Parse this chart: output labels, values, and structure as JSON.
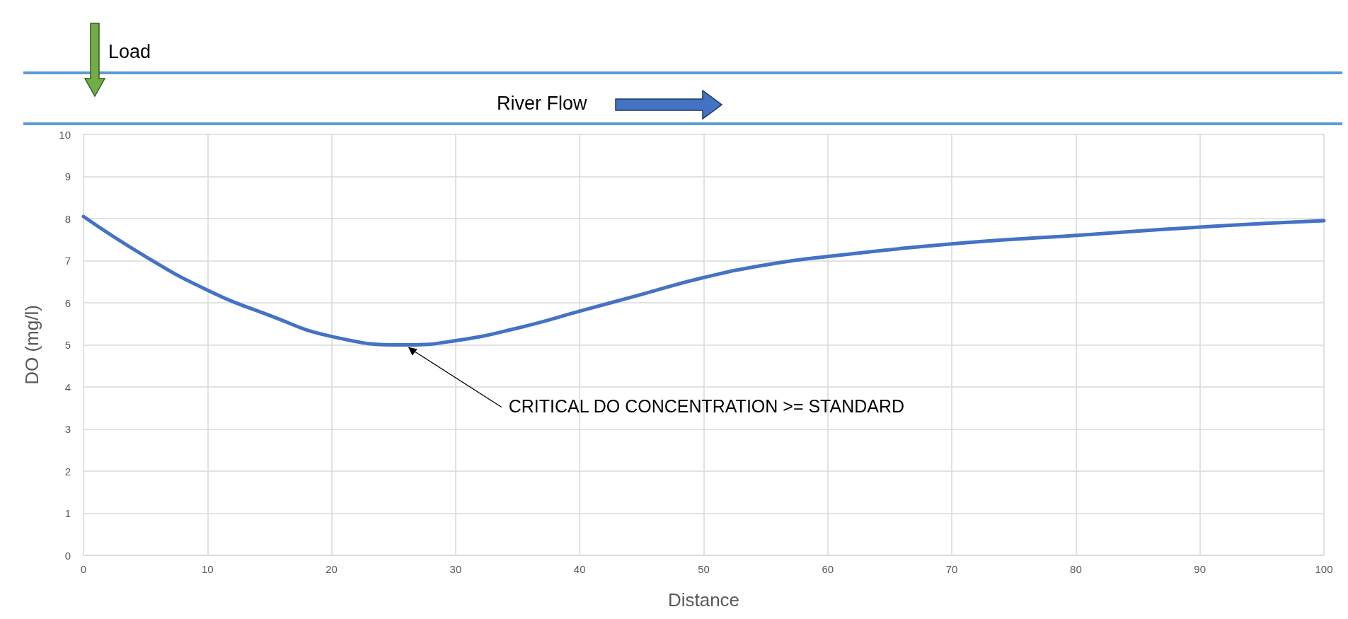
{
  "chart_data": {
    "type": "line",
    "xlabel": "Distance",
    "ylabel": "DO (mg/l)",
    "x": [
      0,
      5,
      10,
      15,
      20,
      26,
      30,
      35,
      40,
      45,
      50,
      55,
      60,
      70,
      80,
      90,
      100
    ],
    "series": [
      {
        "color": "#4472c4",
        "values": [
          8.05,
          7.1,
          6.3,
          5.7,
          5.2,
          5.0,
          5.1,
          5.4,
          5.8,
          6.2,
          6.6,
          6.9,
          7.1,
          7.4,
          7.6,
          7.8,
          7.95
        ]
      }
    ],
    "xlim": [
      0,
      100
    ],
    "xticks": [
      0,
      10,
      20,
      30,
      40,
      50,
      60,
      70,
      80,
      90,
      100
    ],
    "ylim": [
      0,
      10
    ],
    "yticks": [
      0,
      1,
      2,
      3,
      4,
      5,
      6,
      7,
      8,
      9,
      10
    ],
    "grid": true,
    "marker": "none",
    "line_style": "solid",
    "annotations": [
      "Load",
      "River Flow",
      "CRITICAL DO CONCENTRATION >= STANDARD"
    ]
  }
}
